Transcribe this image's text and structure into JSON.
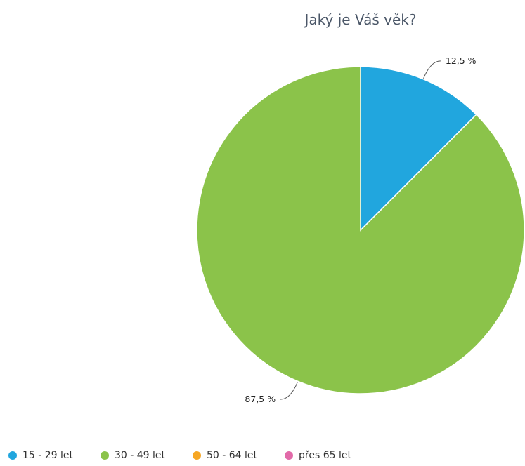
{
  "chart_data": {
    "type": "pie",
    "title": "Jaký je Váš věk?",
    "categories": [
      "15 - 29 let",
      "30 - 49 let",
      "50 - 64 let",
      "přes 65 let"
    ],
    "values": [
      12.5,
      87.5,
      0,
      0
    ],
    "data_labels": [
      "12,5 %",
      "87,5 %",
      "",
      ""
    ],
    "colors": [
      "#21a6de",
      "#8bc34a",
      "#f6a623",
      "#e26aa9"
    ],
    "legend": "bottom-left"
  }
}
